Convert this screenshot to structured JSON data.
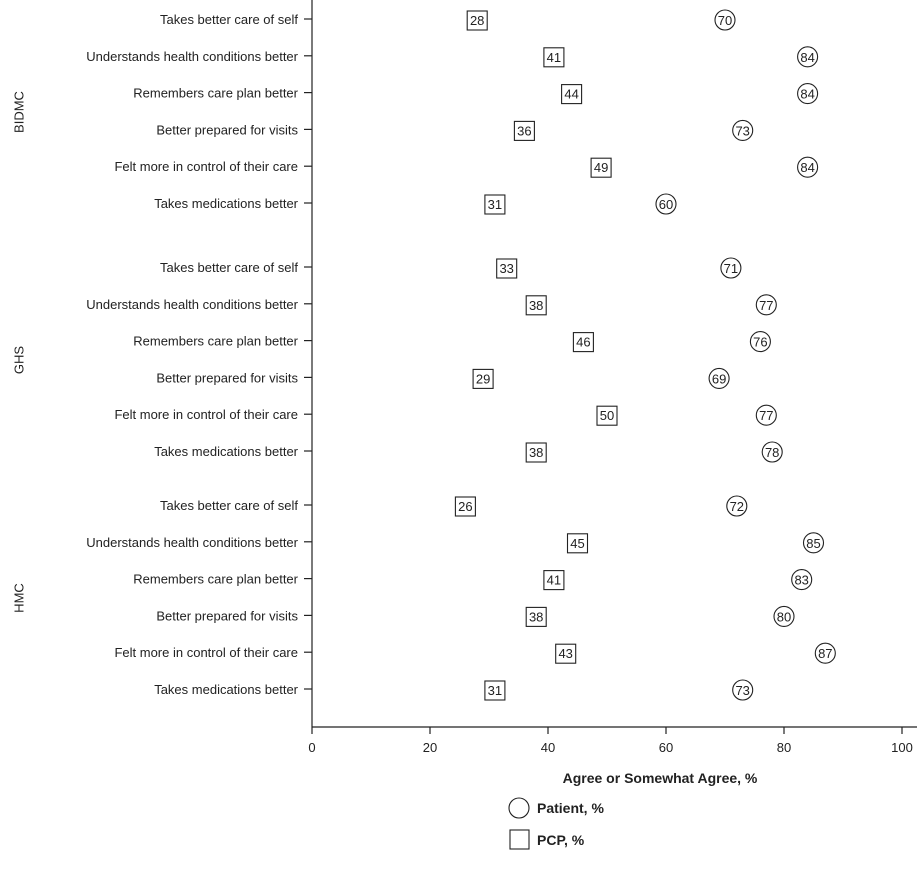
{
  "chart_data": {
    "type": "scatter",
    "xlabel": "Agree or Somewhat Agree, %",
    "xlim": [
      0,
      100
    ],
    "xticks": [
      0,
      20,
      40,
      60,
      80,
      100
    ],
    "grid": false,
    "legend": {
      "placement": "bottom-center",
      "entries": [
        {
          "label": "Patient, %",
          "marker": "circle"
        },
        {
          "label": "PCP, %",
          "marker": "square"
        }
      ]
    },
    "groups": [
      {
        "name": "BIDMC",
        "items": [
          {
            "label": "Takes better care of self",
            "patient": 70,
            "pcp": 28
          },
          {
            "label": "Understands health conditions better",
            "patient": 84,
            "pcp": 41
          },
          {
            "label": "Remembers care plan better",
            "patient": 84,
            "pcp": 44
          },
          {
            "label": "Better prepared for visits",
            "patient": 73,
            "pcp": 36
          },
          {
            "label": "Felt more in control of their care",
            "patient": 84,
            "pcp": 49
          },
          {
            "label": "Takes medications better",
            "patient": 60,
            "pcp": 31
          }
        ]
      },
      {
        "name": "GHS",
        "items": [
          {
            "label": "Takes better care of self",
            "patient": 71,
            "pcp": 33
          },
          {
            "label": "Understands health conditions better",
            "patient": 77,
            "pcp": 38
          },
          {
            "label": "Remembers care plan better",
            "patient": 76,
            "pcp": 46
          },
          {
            "label": "Better prepared for visits",
            "patient": 69,
            "pcp": 29
          },
          {
            "label": "Felt more in control of their care",
            "patient": 77,
            "pcp": 50
          },
          {
            "label": "Takes medications better",
            "patient": 78,
            "pcp": 38
          }
        ]
      },
      {
        "name": "HMC",
        "items": [
          {
            "label": "Takes better care of self",
            "patient": 72,
            "pcp": 26
          },
          {
            "label": "Understands health conditions better",
            "patient": 85,
            "pcp": 45
          },
          {
            "label": "Remembers care plan better",
            "patient": 83,
            "pcp": 41
          },
          {
            "label": "Better prepared for visits",
            "patient": 80,
            "pcp": 38
          },
          {
            "label": "Felt more in control of their care",
            "patient": 87,
            "pcp": 43
          },
          {
            "label": "Takes medications better",
            "patient": 73,
            "pcp": 31
          }
        ]
      }
    ]
  }
}
